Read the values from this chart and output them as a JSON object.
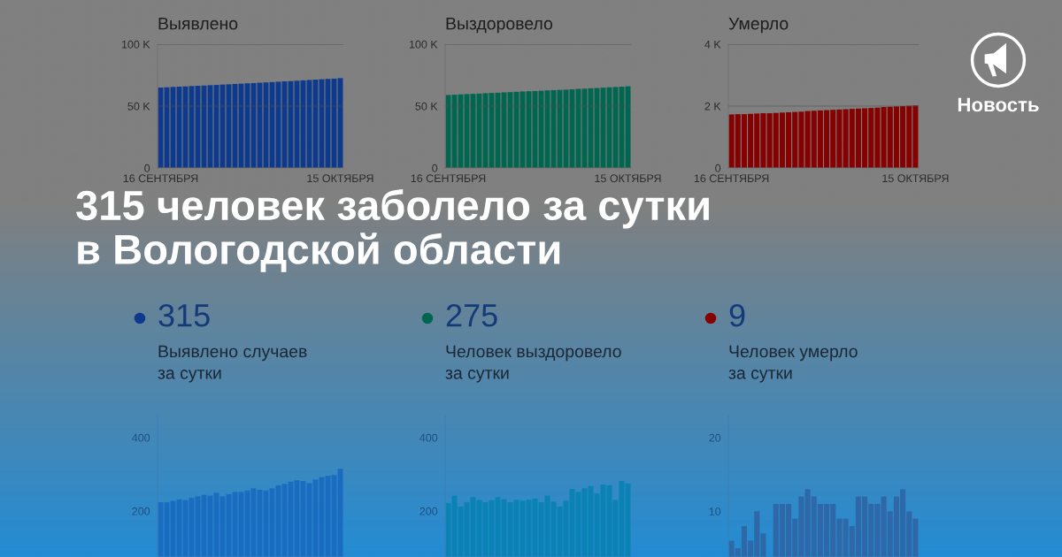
{
  "chart_data": [
    {
      "type": "bar",
      "title": "Выявлено",
      "categories": [
        "16 СЕНТЯБРЯ",
        null,
        null,
        null,
        null,
        null,
        null,
        null,
        null,
        null,
        null,
        null,
        null,
        null,
        null,
        null,
        null,
        null,
        null,
        null,
        null,
        null,
        null,
        null,
        null,
        null,
        null,
        null,
        null,
        "15 ОКТЯБРЯ"
      ],
      "values": [
        65000,
        65200,
        65500,
        65700,
        65900,
        66200,
        66400,
        66600,
        66900,
        67100,
        67400,
        67600,
        67900,
        68100,
        68400,
        68600,
        68900,
        69100,
        69400,
        69700,
        70000,
        70200,
        70500,
        70800,
        71100,
        71400,
        71700,
        72000,
        72200,
        72600
      ],
      "color": "#0d3a8c",
      "ylim": [
        0,
        100000
      ],
      "yticks": [
        0,
        {
          "value": 50000,
          "label": "50 K"
        },
        {
          "value": 100000,
          "label": "100 K"
        }
      ],
      "grid": "y"
    },
    {
      "type": "bar",
      "title": "Выздоровело",
      "categories": [
        "16 СЕНТЯБРЯ",
        null,
        null,
        null,
        null,
        null,
        null,
        null,
        null,
        null,
        null,
        null,
        null,
        null,
        null,
        null,
        null,
        null,
        null,
        null,
        null,
        null,
        null,
        null,
        null,
        null,
        null,
        null,
        null,
        "15 ОКТЯБРЯ"
      ],
      "values": [
        59000,
        59200,
        59500,
        59700,
        59900,
        60100,
        60400,
        60600,
        60800,
        61100,
        61300,
        61500,
        61800,
        62000,
        62200,
        62400,
        62700,
        62900,
        63100,
        63300,
        63600,
        63900,
        64100,
        64400,
        64600,
        64900,
        65200,
        65400,
        65700,
        66000
      ],
      "color": "#00664f",
      "ylim": [
        0,
        100000
      ],
      "yticks": [
        0,
        {
          "value": 50000,
          "label": "50 K"
        },
        {
          "value": 100000,
          "label": "100 K"
        }
      ],
      "grid": "y"
    },
    {
      "type": "bar",
      "title": "Умерло",
      "categories": [
        "16 СЕНТЯБРЯ",
        null,
        null,
        null,
        null,
        null,
        null,
        null,
        null,
        null,
        null,
        null,
        null,
        null,
        null,
        null,
        null,
        null,
        null,
        null,
        null,
        null,
        null,
        null,
        null,
        null,
        null,
        null,
        null,
        "15 ОКТЯБРЯ"
      ],
      "values": [
        1730,
        1740,
        1740,
        1750,
        1760,
        1770,
        1770,
        1780,
        1790,
        1800,
        1810,
        1820,
        1840,
        1850,
        1860,
        1870,
        1880,
        1890,
        1900,
        1910,
        1920,
        1930,
        1940,
        1950,
        1970,
        1980,
        1990,
        2000,
        2010,
        2020
      ],
      "color": "#870000",
      "ylim": [
        0,
        4000
      ],
      "yticks": [
        0,
        {
          "value": 2000,
          "label": "2 K"
        },
        {
          "value": 4000,
          "label": "4 K"
        }
      ],
      "grid": "y"
    },
    {
      "type": "other",
      "title": "315 человек заболело за сутки\nв Вологодской области",
      "annotations": [
        "Новость"
      ]
    },
    {
      "type": "bar",
      "title": "315",
      "subtitle": "Выявлено случаев\nза сутки",
      "categories": [
        null,
        null,
        null,
        null,
        null,
        null,
        null,
        null,
        null,
        null,
        null,
        null,
        null,
        null,
        null,
        null,
        null,
        null,
        null,
        null,
        null,
        null,
        null,
        null,
        null,
        null,
        null,
        null,
        null,
        null
      ],
      "values": [
        224,
        224,
        228,
        232,
        230,
        236,
        240,
        244,
        242,
        250,
        240,
        246,
        252,
        252,
        256,
        262,
        258,
        256,
        262,
        270,
        274,
        280,
        284,
        282,
        276,
        286,
        292,
        296,
        298,
        315
      ],
      "color": "#1a6cc0",
      "ylim": [
        75,
        460
      ],
      "yticks": [
        200,
        400
      ],
      "tick_labels": "y"
    },
    {
      "type": "bar",
      "title": "275",
      "subtitle": "Человек выздоровело\nза сутки",
      "categories": [
        null,
        null,
        null,
        null,
        null,
        null,
        null,
        null,
        null,
        null,
        null,
        null,
        null,
        null,
        null,
        null,
        null,
        null,
        null,
        null,
        null,
        null,
        null,
        null,
        null,
        null,
        null,
        null,
        null,
        null
      ],
      "values": [
        222,
        242,
        212,
        224,
        238,
        230,
        224,
        230,
        238,
        232,
        224,
        230,
        228,
        231,
        234,
        224,
        242,
        226,
        212,
        228,
        260,
        252,
        262,
        268,
        248,
        272,
        270,
        230,
        282,
        275
      ],
      "color": "#0a82b4",
      "ylim": [
        75,
        460
      ],
      "yticks": [
        200,
        400
      ],
      "tick_labels": "y"
    },
    {
      "type": "bar",
      "title": "9",
      "subtitle": "Человек умерло\nза сутки",
      "categories": [
        null,
        null,
        null,
        null,
        null,
        null,
        null,
        null,
        null,
        null,
        null,
        null,
        null,
        null,
        null,
        null,
        null,
        null,
        null,
        null,
        null,
        null,
        null,
        null,
        null,
        null,
        null,
        null,
        null,
        null
      ],
      "values": [
        6,
        5,
        8,
        6,
        10,
        7,
        null,
        11,
        11,
        11,
        9,
        12,
        13,
        12,
        11,
        11,
        11,
        9,
        9,
        8,
        12,
        12,
        11,
        11,
        12,
        10,
        12,
        13,
        10,
        9
      ],
      "color": "#2e68a8",
      "ylim": [
        3.8,
        23
      ],
      "yticks": [
        10,
        20
      ],
      "tick_labels": "y"
    }
  ]
}
